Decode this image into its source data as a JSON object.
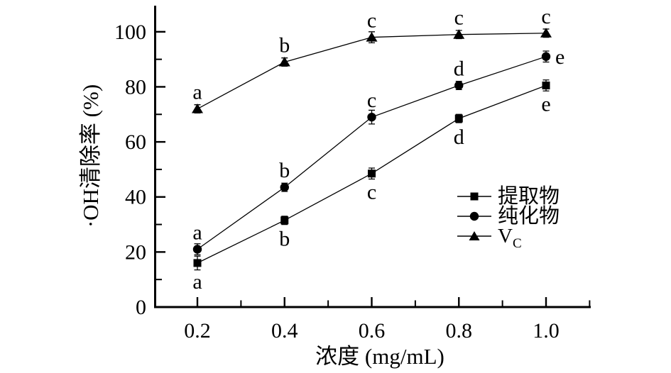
{
  "figure": {
    "background": "#ffffff",
    "ink_color": "#000000"
  },
  "chart_data": {
    "type": "line",
    "title": "",
    "xlabel": "浓度 (mg/mL)",
    "ylabel": "·OH清除率 (%)",
    "x": [
      0.2,
      0.4,
      0.6,
      0.8,
      1.0
    ],
    "x_tick_labels": [
      "0.2",
      "0.4",
      "0.6",
      "0.8",
      "1.0"
    ],
    "x_minor_ticks": [
      0.3,
      0.5,
      0.7,
      0.9,
      1.1
    ],
    "xlim": [
      0.1,
      1.1
    ],
    "y_ticks": [
      0,
      20,
      40,
      60,
      80,
      100
    ],
    "y_tick_labels": [
      "0",
      "20",
      "40",
      "60",
      "80",
      "100"
    ],
    "y_minor_ticks": [
      10,
      30,
      50,
      70,
      90
    ],
    "ylim": [
      0,
      110
    ],
    "grid": false,
    "legend_position": "inside-right",
    "series": [
      {
        "name": "提取物",
        "marker": "square",
        "values": [
          16,
          31.5,
          48.5,
          68.5,
          80.5
        ],
        "errors": [
          2.5,
          1.5,
          2,
          1.5,
          2
        ],
        "point_labels": [
          "a",
          "b",
          "c",
          "d",
          "e"
        ],
        "label_sides": [
          "below",
          "below",
          "below",
          "below",
          "below"
        ]
      },
      {
        "name": "纯化物",
        "marker": "circle",
        "values": [
          21,
          43.5,
          69,
          80.5,
          91
        ],
        "errors": [
          2,
          1.5,
          2.5,
          1.5,
          2
        ],
        "point_labels": [
          "a",
          "b",
          "c",
          "d",
          "e"
        ],
        "label_sides": [
          "above",
          "above",
          "above",
          "above",
          "right"
        ]
      },
      {
        "name": "VC",
        "display_base": "V",
        "display_sub": "C",
        "marker": "triangle",
        "values": [
          72,
          89,
          98,
          99,
          99.5
        ],
        "errors": [
          1.5,
          1.5,
          2,
          1.5,
          1.5
        ],
        "point_labels": [
          "a",
          "b",
          "c",
          "c",
          "c"
        ],
        "label_sides": [
          "above",
          "above",
          "above",
          "above",
          "above"
        ]
      }
    ]
  }
}
